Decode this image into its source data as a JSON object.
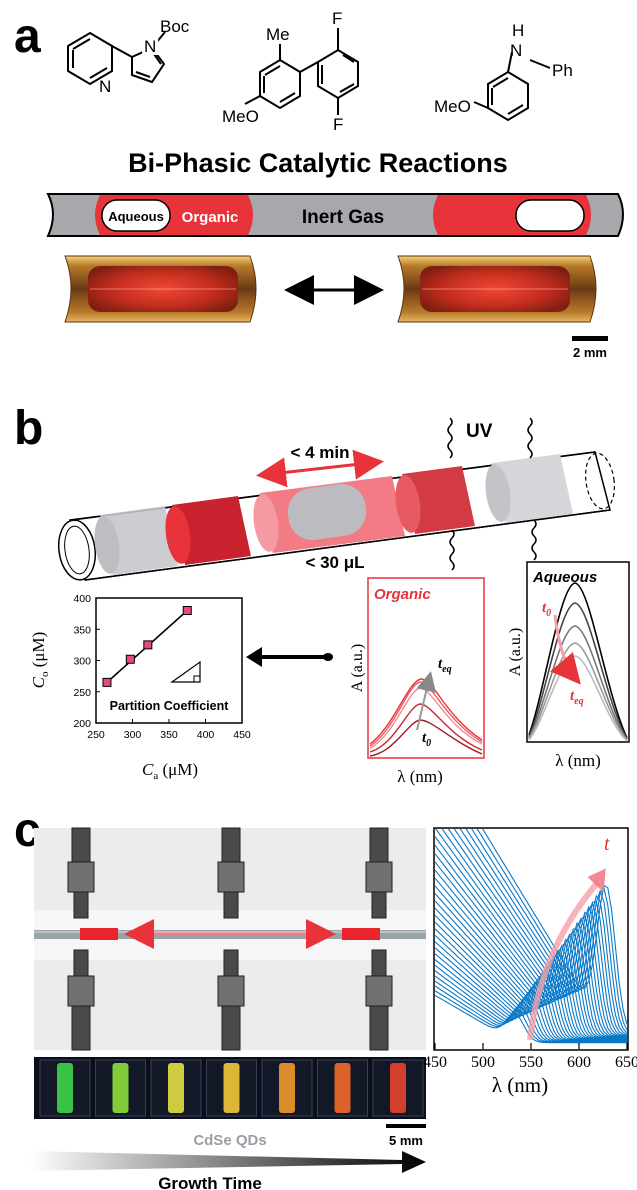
{
  "panel_a": {
    "letter": "a",
    "molecules": {
      "m1_sub": "Boc",
      "m1_n_pyrrole": "N",
      "m1_n_pyridine": "N",
      "m2_me": "Me",
      "m2_f_top": "F",
      "m2_f_bottom": "F",
      "m2_meo": "MeO",
      "m3_h": "H",
      "m3_n": "N",
      "m3_ph": "Ph",
      "m3_meo": "MeO"
    },
    "title": "Bi-Phasic Catalytic Reactions",
    "tube_labels": {
      "aqueous": "Aqueous",
      "organic": "Organic",
      "inert": "Inert Gas"
    },
    "scale_bar": "2 mm"
  },
  "panel_b": {
    "letter": "b",
    "uv_label": "UV",
    "time_label": "< 4 min",
    "volume_label": "< 30 μL",
    "partition_plot": {
      "xlabel_main": "C",
      "xlabel_sub": "a",
      "xlabel_unit": " (μM)",
      "ylabel_main": "C",
      "ylabel_sub": "o",
      "ylabel_unit": " (μM)",
      "caption": "Partition Coefficient",
      "xticks": [
        "250",
        "300",
        "350",
        "400",
        "450"
      ],
      "yticks": [
        "200",
        "250",
        "300",
        "350",
        "400"
      ]
    },
    "organic_plot": {
      "title": "Organic",
      "ylabel": "A (a.u.)",
      "xlabel": "λ (nm)",
      "t_eq": "t",
      "t_eq_sub": "eq",
      "t_0": "t",
      "t_0_sub": "0"
    },
    "aqueous_plot": {
      "title": "Aqueous",
      "ylabel": "A (a.u.)",
      "xlabel": "λ (nm)",
      "t_eq": "t",
      "t_eq_sub": "eq",
      "t_0": "t",
      "t_0_sub": "0"
    }
  },
  "panel_c": {
    "letter": "c",
    "qd_label": "CdSe QDs",
    "growth_label": "Growth Time",
    "scale_bar": "5 mm",
    "spectrum": {
      "xlabel": "λ (nm)",
      "xticks": [
        "450",
        "500",
        "550",
        "600",
        "650"
      ],
      "t_label": "t"
    }
  },
  "colors": {
    "organic_red": "#e8333b",
    "tube_gray": "#a6a8ab",
    "spectrum_blue": "#0a78c8",
    "marker_pink": "#e8497a",
    "label_red": "#e8333b"
  },
  "chart_data": [
    {
      "type": "scatter",
      "xlabel": "Ca (μM)",
      "ylabel": "Co (μM)",
      "xlim": [
        250,
        450
      ],
      "ylim": [
        200,
        400
      ],
      "points": [
        {
          "x": 265,
          "y": 265
        },
        {
          "x": 297,
          "y": 302
        },
        {
          "x": 321,
          "y": 325
        },
        {
          "x": 375,
          "y": 380
        }
      ],
      "fit": "linear",
      "grid": false,
      "annotation": "Partition Coefficient"
    },
    {
      "type": "line",
      "xlabel": "λ (nm)",
      "xlim": [
        450,
        650
      ],
      "ticks": [
        450,
        500,
        550,
        600,
        650
      ],
      "feature": "excitonic absorption peak red-shifts from about 540 to 630 nm with growth time t",
      "peak_positions_nm": [
        540,
        560,
        575,
        590,
        600,
        610,
        620,
        630
      ]
    }
  ]
}
